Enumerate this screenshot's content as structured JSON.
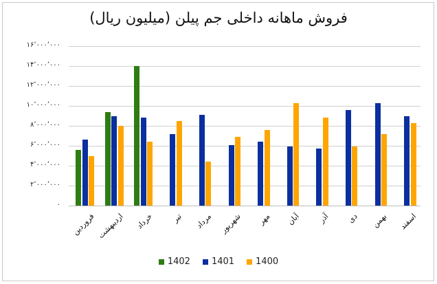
{
  "chart_data": {
    "type": "bar",
    "title": "فروش ماهانه داخلی جم پیلن (میلیون ریال)",
    "xlabel": "",
    "ylabel": "",
    "ylim": [
      0,
      16000000
    ],
    "y_ticks": [
      "۰",
      "۲٬۰۰۰٬۰۰۰",
      "۴٬۰۰۰٬۰۰۰",
      "۶٬۰۰۰٬۰۰۰",
      "۸٬۰۰۰٬۰۰۰",
      "۱۰٬۰۰۰٬۰۰۰",
      "۱۲٬۰۰۰٬۰۰۰",
      "۱۴٬۰۰۰٬۰۰۰",
      "۱۶٬۰۰۰٬۰۰۰"
    ],
    "grid": true,
    "legend_position": "bottom",
    "categories": [
      "فروردین",
      "اردیبهشت",
      "خرداد",
      "تیر",
      "مرداد",
      "شهریور",
      "مهر",
      "آبان",
      "آذر",
      "دی",
      "بهمن",
      "اسفند"
    ],
    "series": [
      {
        "name": "1402",
        "color": "#2e7d12",
        "values": [
          5600000,
          9400000,
          14000000,
          null,
          null,
          null,
          null,
          null,
          null,
          null,
          null,
          null
        ]
      },
      {
        "name": "1401",
        "color": "#0b2f9e",
        "values": [
          6600000,
          9000000,
          8800000,
          7200000,
          9100000,
          6100000,
          6400000,
          5900000,
          5700000,
          9600000,
          10300000,
          9000000
        ]
      },
      {
        "name": "1400",
        "color": "#ffa500",
        "values": [
          5000000,
          8000000,
          6400000,
          8500000,
          4400000,
          6900000,
          7600000,
          10300000,
          8800000,
          5900000,
          7200000,
          8300000
        ]
      }
    ]
  },
  "legend": [
    {
      "label": "1402",
      "color": "#2e7d12"
    },
    {
      "label": "1401",
      "color": "#0b2f9e"
    },
    {
      "label": "1400",
      "color": "#ffa500"
    }
  ]
}
